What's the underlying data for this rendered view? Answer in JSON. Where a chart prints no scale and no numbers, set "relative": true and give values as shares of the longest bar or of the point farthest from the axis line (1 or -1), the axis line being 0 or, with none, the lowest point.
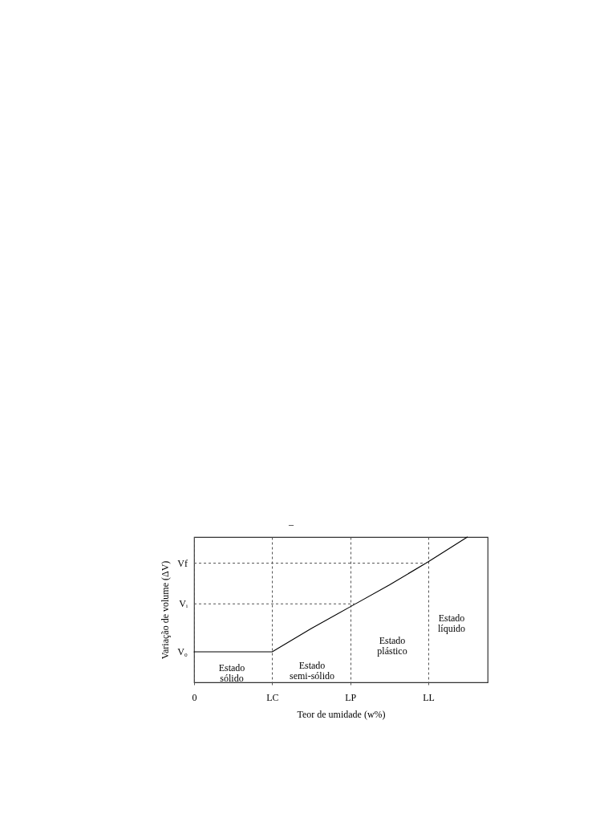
{
  "chart_data": {
    "type": "line",
    "relative": true,
    "title": "–",
    "xlabel": "Teor de umidade (w%)",
    "ylabel": "Variação de volume (ΔV)",
    "categories": [
      "0",
      null,
      "LC",
      null,
      "LP",
      null,
      "LL",
      null
    ],
    "values": [
      0.21,
      0.21,
      0.21,
      0.37,
      0.52,
      0.67,
      0.83,
      1.0
    ],
    "color": "#000000",
    "grid": "x",
    "ref_lines": [
      {
        "axis": "y",
        "value": 0.54,
        "label": "Vᵢ",
        "color": "#555555",
        "line_style": "dashed"
      },
      {
        "axis": "y",
        "value": 0.82,
        "label": "Vf",
        "color": "#555555",
        "line_style": "dashed"
      }
    ],
    "annotations": [
      "V₀",
      "Estado\nsólido",
      "Estado\nsemi-sólido",
      "Estado\nplástico",
      "Estado\nlíquido"
    ],
    "marker": "none",
    "line_style": "solid"
  }
}
